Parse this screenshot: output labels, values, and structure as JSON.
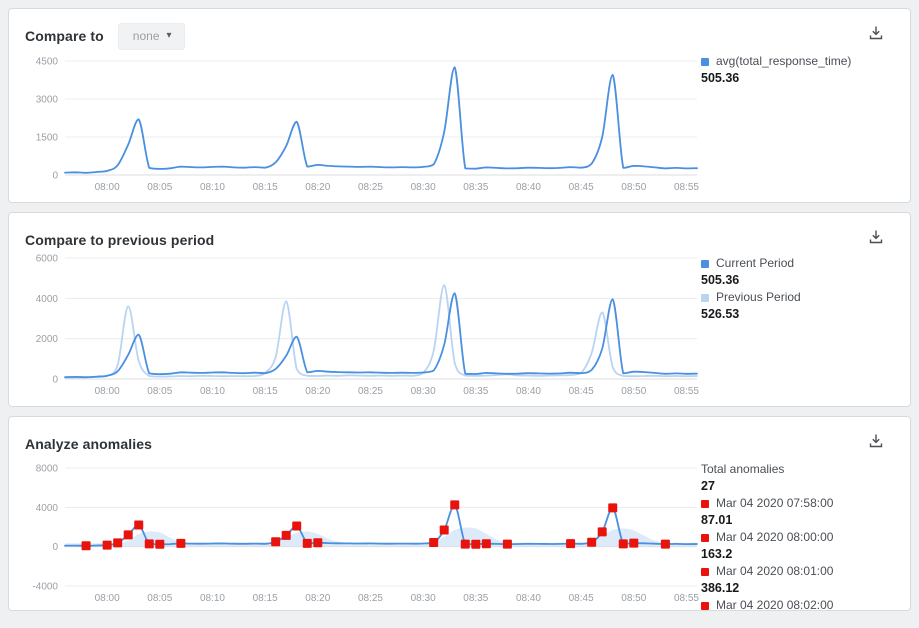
{
  "icons": {
    "dropdown_caret": "▾",
    "download": "download-icon"
  },
  "colors": {
    "primary": "#4a8fe0",
    "previous": "#b9d3f3",
    "anomaly": "#e8130c",
    "band": "#cbdef6",
    "grid": "#ececec",
    "zero_line": "#dcdcdc",
    "axis_text": "#9aa0a6"
  },
  "panels": {
    "compare_to": {
      "title": "Compare to",
      "dropdown": {
        "value": "none"
      },
      "legend": [
        {
          "label": "avg(total_response_time)",
          "value": "505.36"
        }
      ]
    },
    "compare_previous": {
      "title": "Compare to previous period",
      "legend": [
        {
          "label": "Current Period",
          "value": "505.36"
        },
        {
          "label": "Previous Period",
          "value": "526.53"
        }
      ]
    },
    "anomalies": {
      "title": "Analyze anomalies",
      "legend_title": "Total anomalies",
      "legend_total": "27",
      "anomaly_list": [
        {
          "timestamp": "Mar 04 2020 07:58:00",
          "value": "87.01"
        },
        {
          "timestamp": "Mar 04 2020 08:00:00",
          "value": "163.2"
        },
        {
          "timestamp": "Mar 04 2020 08:01:00",
          "value": "386.12"
        },
        {
          "timestamp": "Mar 04 2020 08:02:00",
          "value": ""
        }
      ]
    }
  },
  "chart_data": [
    {
      "id": "compare-to",
      "type": "line",
      "title": "Compare to",
      "x_start_time": "07:56",
      "x_minutes_domain": [
        0,
        60
      ],
      "x_tick_minutes": [
        4,
        9,
        14,
        19,
        24,
        29,
        34,
        39,
        44,
        49,
        54,
        59
      ],
      "x_labels": [
        "08:00",
        "08:05",
        "08:10",
        "08:15",
        "08:20",
        "08:25",
        "08:30",
        "08:35",
        "08:40",
        "08:45",
        "08:50",
        "08:55"
      ],
      "ylim": [
        0,
        4500
      ],
      "yticks": [
        0,
        1500,
        3000,
        4500
      ],
      "grid": true,
      "legend_position": "right",
      "series": [
        {
          "name": "avg(total_response_time)",
          "color": "#4a8fe0",
          "summary_value": 505.36,
          "values": [
            95,
            105,
            87,
            120,
            163,
            386,
            1200,
            2200,
            280,
            240,
            265,
            330,
            310,
            300,
            320,
            330,
            300,
            290,
            310,
            290,
            500,
            1150,
            2100,
            330,
            400,
            360,
            340,
            330,
            320,
            330,
            310,
            300,
            310,
            300,
            320,
            420,
            1700,
            4250,
            260,
            250,
            300,
            280,
            260,
            270,
            290,
            280,
            270,
            280,
            310,
            290,
            450,
            1500,
            3950,
            280,
            360,
            340,
            300,
            260,
            280,
            260,
            270
          ]
        }
      ]
    },
    {
      "id": "compare-previous",
      "type": "line",
      "title": "Compare to previous period",
      "x_start_time": "07:56",
      "x_minutes_domain": [
        0,
        60
      ],
      "x_tick_minutes": [
        4,
        9,
        14,
        19,
        24,
        29,
        34,
        39,
        44,
        49,
        54,
        59
      ],
      "x_labels": [
        "08:00",
        "08:05",
        "08:10",
        "08:15",
        "08:20",
        "08:25",
        "08:30",
        "08:35",
        "08:40",
        "08:45",
        "08:50",
        "08:55"
      ],
      "ylim": [
        0,
        6000
      ],
      "yticks": [
        0,
        2000,
        4000,
        6000
      ],
      "grid": true,
      "legend_position": "right",
      "series": [
        {
          "name": "Current Period",
          "color": "#4a8fe0",
          "summary_value": 505.36,
          "values": [
            95,
            105,
            87,
            120,
            163,
            386,
            1200,
            2200,
            280,
            240,
            265,
            330,
            310,
            300,
            320,
            330,
            300,
            290,
            310,
            290,
            500,
            1150,
            2100,
            330,
            400,
            360,
            340,
            330,
            320,
            330,
            310,
            300,
            310,
            300,
            320,
            420,
            1700,
            4250,
            260,
            250,
            300,
            280,
            260,
            270,
            290,
            280,
            270,
            280,
            310,
            290,
            450,
            1500,
            3950,
            280,
            360,
            340,
            300,
            260,
            280,
            260,
            270
          ]
        },
        {
          "name": "Previous Period",
          "color": "#b9d3f3",
          "summary_value": 526.53,
          "values": [
            60,
            70,
            80,
            100,
            150,
            700,
            3600,
            900,
            150,
            120,
            130,
            150,
            140,
            160,
            150,
            140,
            150,
            140,
            150,
            300,
            1100,
            3850,
            500,
            160,
            150,
            170,
            160,
            180,
            170,
            160,
            170,
            160,
            170,
            160,
            300,
            1400,
            4650,
            800,
            170,
            160,
            170,
            200,
            230,
            180,
            170,
            160,
            170,
            180,
            200,
            300,
            1300,
            3300,
            600,
            150,
            140,
            150,
            160,
            140,
            150,
            140,
            150
          ]
        }
      ]
    },
    {
      "id": "analyze-anomalies",
      "type": "line",
      "title": "Analyze anomalies",
      "x_start_time": "07:56",
      "x_minutes_domain": [
        0,
        60
      ],
      "x_tick_minutes": [
        4,
        9,
        14,
        19,
        24,
        29,
        34,
        39,
        44,
        49,
        54,
        59
      ],
      "x_labels": [
        "08:00",
        "08:05",
        "08:10",
        "08:15",
        "08:20",
        "08:25",
        "08:30",
        "08:35",
        "08:40",
        "08:45",
        "08:50",
        "08:55"
      ],
      "ylim": [
        -4000,
        8000
      ],
      "yticks": [
        -4000,
        0,
        4000,
        8000
      ],
      "grid": true,
      "legend_position": "right",
      "total_anomalies": 27,
      "series": [
        {
          "name": "avg(total_response_time)",
          "color": "#4a8fe0",
          "values": [
            95,
            105,
            87,
            120,
            163,
            386,
            1200,
            2200,
            280,
            240,
            265,
            330,
            310,
            300,
            320,
            330,
            300,
            290,
            310,
            290,
            500,
            1150,
            2100,
            330,
            400,
            360,
            340,
            330,
            320,
            330,
            310,
            300,
            310,
            300,
            320,
            420,
            1700,
            4250,
            260,
            250,
            300,
            280,
            260,
            270,
            290,
            280,
            270,
            280,
            310,
            290,
            450,
            1500,
            3950,
            280,
            360,
            340,
            300,
            260,
            280,
            260,
            270
          ]
        }
      ],
      "band": {
        "color": "#cbdef6",
        "lower_constant": 60,
        "upper": [
          350,
          350,
          350,
          350,
          350,
          400,
          600,
          1300,
          1550,
          1450,
          900,
          500,
          400,
          400,
          400,
          400,
          400,
          400,
          400,
          400,
          500,
          900,
          1400,
          1550,
          1300,
          800,
          500,
          400,
          400,
          400,
          400,
          400,
          400,
          400,
          400,
          500,
          1000,
          1700,
          1950,
          1850,
          1300,
          700,
          400,
          400,
          400,
          400,
          400,
          400,
          400,
          400,
          600,
          1100,
          1700,
          1850,
          1650,
          1100,
          600,
          400,
          400,
          400,
          400
        ]
      },
      "anomaly_color": "#e8130c",
      "anomaly_minutes": [
        2,
        4,
        5,
        6,
        7,
        8,
        9,
        11,
        20,
        21,
        22,
        23,
        24,
        35,
        36,
        37,
        38,
        39,
        40,
        42,
        48,
        50,
        51,
        52,
        53,
        54,
        57
      ]
    }
  ]
}
